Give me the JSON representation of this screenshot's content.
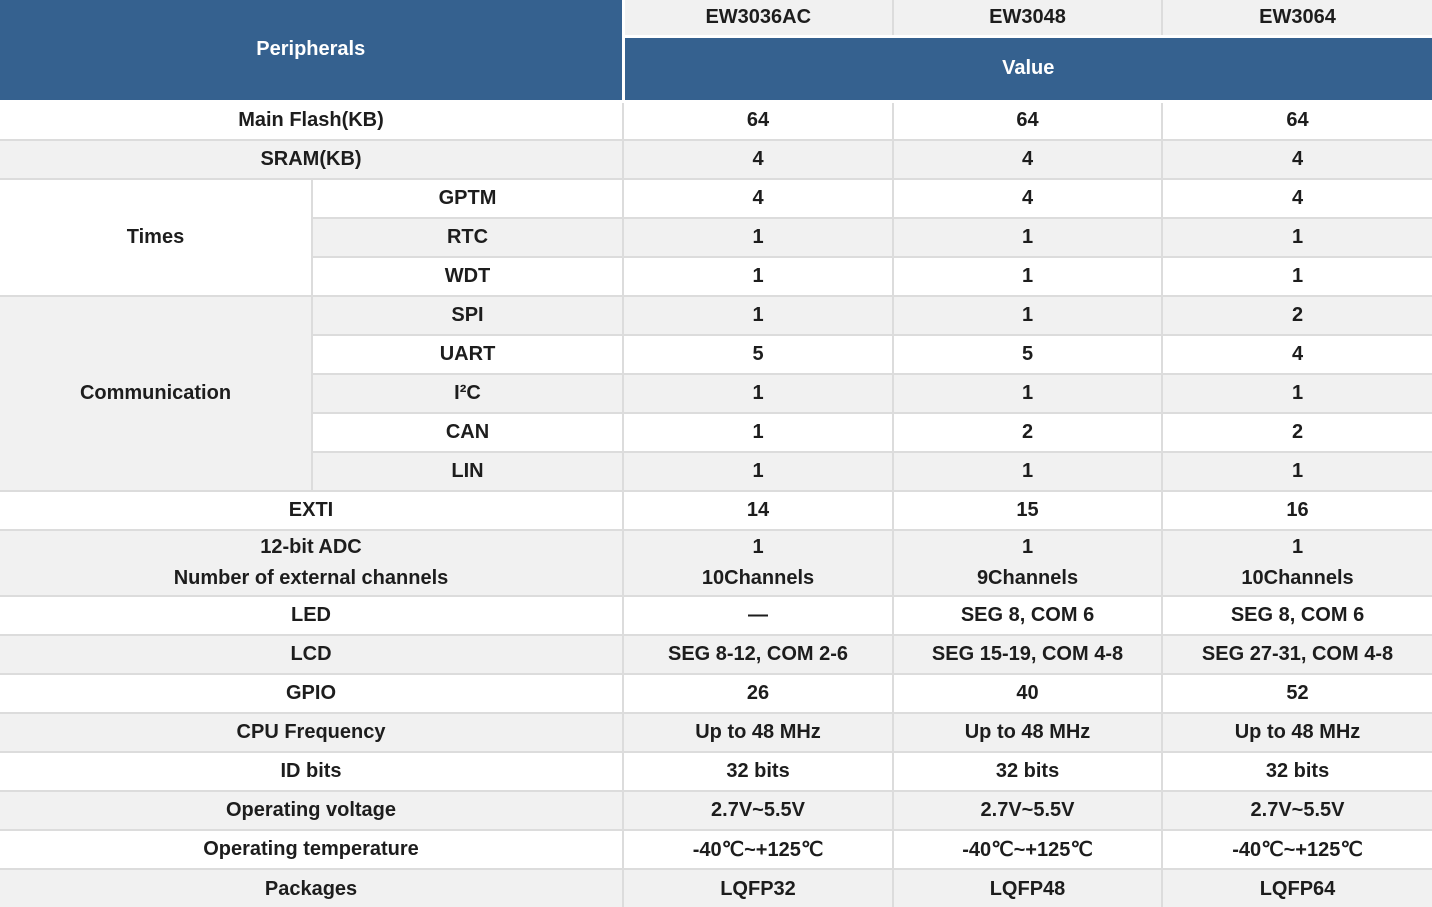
{
  "header": {
    "peripherals": "Peripherals",
    "value": "Value",
    "models": {
      "m1": "EW3036AC",
      "m2": "EW3048",
      "m3": "EW3064"
    }
  },
  "groups": {
    "times": "Times",
    "communication": "Communication"
  },
  "rows": [
    {
      "label": "Main Flash(KB)",
      "v1": "64",
      "v2": "64",
      "v3": "64"
    },
    {
      "label": "SRAM(KB)",
      "v1": "4",
      "v2": "4",
      "v3": "4"
    },
    {
      "label": "GPTM",
      "v1": "4",
      "v2": "4",
      "v3": "4"
    },
    {
      "label": "RTC",
      "v1": "1",
      "v2": "1",
      "v3": "1"
    },
    {
      "label": "WDT",
      "v1": "1",
      "v2": "1",
      "v3": "1"
    },
    {
      "label": "SPI",
      "v1": "1",
      "v2": "1",
      "v3": "2"
    },
    {
      "label": "UART",
      "v1": "5",
      "v2": "5",
      "v3": "4"
    },
    {
      "label": "I²C",
      "v1": "1",
      "v2": "1",
      "v3": "1"
    },
    {
      "label": "CAN",
      "v1": "1",
      "v2": "2",
      "v3": "2"
    },
    {
      "label": "LIN",
      "v1": "1",
      "v2": "1",
      "v3": "1"
    },
    {
      "label": "EXTI",
      "v1": "14",
      "v2": "15",
      "v3": "16"
    },
    {
      "label_line1": "12-bit ADC",
      "label_line2": "Number of external channels",
      "v1_line1": "1",
      "v1_line2": "10Channels",
      "v2_line1": "1",
      "v2_line2": "9Channels",
      "v3_line1": "1",
      "v3_line2": "10Channels"
    },
    {
      "label": "LED",
      "v1": "—",
      "v2": "SEG 8, COM 6",
      "v3": "SEG 8, COM 6"
    },
    {
      "label": "LCD",
      "v1": "SEG 8-12, COM 2-6",
      "v2": "SEG 15-19, COM 4-8",
      "v3": "SEG 27-31, COM 4-8"
    },
    {
      "label": "GPIO",
      "v1": "26",
      "v2": "40",
      "v3": "52"
    },
    {
      "label": "CPU Frequency",
      "v1": "Up to 48 MHz",
      "v2": "Up to 48 MHz",
      "v3": "Up to 48 MHz"
    },
    {
      "label": "ID bits",
      "v1": "32 bits",
      "v2": "32 bits",
      "v3": "32 bits"
    },
    {
      "label": "Operating voltage",
      "v1": "2.7V~5.5V",
      "v2": "2.7V~5.5V",
      "v3": "2.7V~5.5V"
    },
    {
      "label": "Operating temperature",
      "v1": "-40℃~+125℃",
      "v2": "-40℃~+125℃",
      "v3": "-40℃~+125℃"
    },
    {
      "label": "Packages",
      "v1": "LQFP32",
      "v2": "LQFP48",
      "v3": "LQFP64"
    }
  ],
  "colors": {
    "header_blue": "#35618F",
    "row_alt_gray": "#F1F1F1",
    "row_white": "#FFFFFF",
    "grid_border": "#DCDCDC",
    "header_text": "#FFFFFF",
    "body_text": "#1D1D1D"
  }
}
